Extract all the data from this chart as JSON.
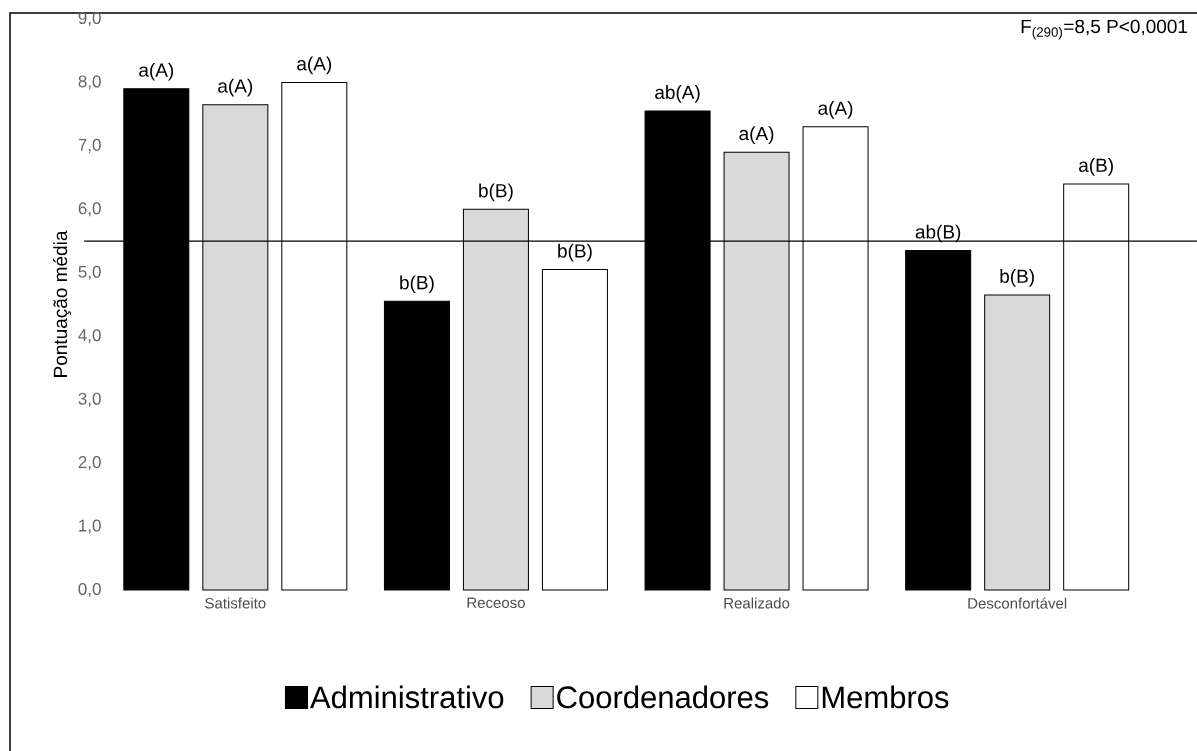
{
  "chart_data": {
    "type": "bar",
    "ylabel": "Pontuação média",
    "categories": [
      "Satisfeito",
      "Receoso",
      "Realizado",
      "Desconfortável"
    ],
    "series": [
      {
        "name": "Administrativo",
        "color": "#000000",
        "values": [
          7.9,
          4.55,
          7.55,
          5.35
        ],
        "value_labels": [
          "a(A)",
          "b(B)",
          "ab(A)",
          "ab(B)"
        ]
      },
      {
        "name": "Coordenadores",
        "color": "#d9d9d9",
        "values": [
          7.65,
          6.0,
          6.9,
          4.65
        ],
        "value_labels": [
          "a(A)",
          "b(B)",
          "a(A)",
          "b(B)"
        ]
      },
      {
        "name": "Membros",
        "color": "#ffffff",
        "values": [
          8.0,
          5.05,
          7.3,
          6.4
        ],
        "value_labels": [
          "a(A)",
          "b(B)",
          "a(A)",
          "a(B)"
        ]
      }
    ],
    "ylim": [
      0,
      9
    ],
    "yticks": [
      {
        "value": 0,
        "label": "0,0"
      },
      {
        "value": 1,
        "label": "1,0"
      },
      {
        "value": 2,
        "label": "2,0"
      },
      {
        "value": 3,
        "label": "3,0"
      },
      {
        "value": 4,
        "label": "4,0"
      },
      {
        "value": 5,
        "label": "5,0"
      },
      {
        "value": 6,
        "label": "6,0"
      },
      {
        "value": 7,
        "label": "7,0"
      },
      {
        "value": 8,
        "label": "8,0"
      },
      {
        "value": 9,
        "label": "9,0"
      }
    ],
    "ref_lines": [
      {
        "axis": "y",
        "value": 5.5
      }
    ],
    "annotations": [
      "F$_{(290)}$=8,5 P<0,0001"
    ],
    "grid": false,
    "legend": "bottom"
  }
}
